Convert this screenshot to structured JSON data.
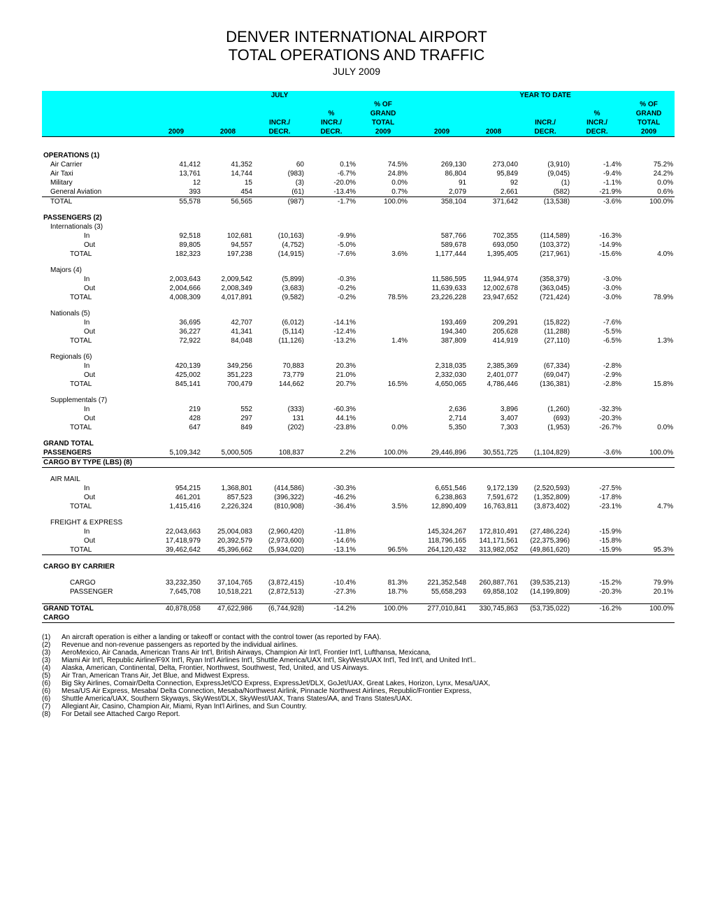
{
  "title": {
    "line1": "DENVER INTERNATIONAL AIRPORT",
    "line2": "TOTAL OPERATIONS AND TRAFFIC",
    "line3": "JULY 2009"
  },
  "headers": {
    "group_july": "JULY",
    "group_ytd": "YEAR TO DATE",
    "y2009": "2009",
    "y2008": "2008",
    "incr_decr": "INCR./",
    "decr": "DECR.",
    "pct": "%",
    "pct_incr": "INCR./",
    "pct_decr": "DECR.",
    "pct_of": "% OF",
    "grand": "GRAND",
    "total": "TOTAL",
    "y2009b": "2009"
  },
  "sections": {
    "operations": {
      "title": "OPERATIONS (1)",
      "rows": [
        {
          "label": "Air Carrier",
          "indent": 1,
          "j09": "41,412",
          "j08": "41,352",
          "jd": "60",
          "jp": "0.1%",
          "jg": "74.5%",
          "y09": "269,130",
          "y08": "273,040",
          "yd": "(3,910)",
          "yp": "-1.4%",
          "yg": "75.2%"
        },
        {
          "label": "Air Taxi",
          "indent": 1,
          "j09": "13,761",
          "j08": "14,744",
          "jd": "(983)",
          "jp": "-6.7%",
          "jg": "24.8%",
          "y09": "86,804",
          "y08": "95,849",
          "yd": "(9,045)",
          "yp": "-9.4%",
          "yg": "24.2%"
        },
        {
          "label": "Military",
          "indent": 1,
          "j09": "12",
          "j08": "15",
          "jd": "(3)",
          "jp": "-20.0%",
          "jg": "0.0%",
          "y09": "91",
          "y08": "92",
          "yd": "(1)",
          "yp": "-1.1%",
          "yg": "0.0%"
        },
        {
          "label": "General Aviation",
          "indent": 1,
          "j09": "393",
          "j08": "454",
          "jd": "(61)",
          "jp": "-13.4%",
          "jg": "0.7%",
          "y09": "2,079",
          "y08": "2,661",
          "yd": "(582)",
          "yp": "-21.9%",
          "yg": "0.6%"
        },
        {
          "label": "TOTAL",
          "indent": 1,
          "j09": "55,578",
          "j08": "56,565",
          "jd": "(987)",
          "jp": "-1.7%",
          "jg": "100.0%",
          "y09": "358,104",
          "y08": "371,642",
          "yd": "(13,538)",
          "yp": "-3.6%",
          "yg": "100.0%",
          "borderTop": true
        }
      ]
    },
    "passengers": {
      "title": "PASSENGERS (2)",
      "groups": [
        {
          "title": "Internationals (3)",
          "rows": [
            {
              "label": "In",
              "indent": 3,
              "j09": "92,518",
              "j08": "102,681",
              "jd": "(10,163)",
              "jp": "-9.9%",
              "jg": "",
              "y09": "587,766",
              "y08": "702,355",
              "yd": "(114,589)",
              "yp": "-16.3%",
              "yg": ""
            },
            {
              "label": "Out",
              "indent": 3,
              "j09": "89,805",
              "j08": "94,557",
              "jd": "(4,752)",
              "jp": "-5.0%",
              "jg": "",
              "y09": "589,678",
              "y08": "693,050",
              "yd": "(103,372)",
              "yp": "-14.9%",
              "yg": ""
            },
            {
              "label": "TOTAL",
              "indent": 2,
              "j09": "182,323",
              "j08": "197,238",
              "jd": "(14,915)",
              "jp": "-7.6%",
              "jg": "3.6%",
              "y09": "1,177,444",
              "y08": "1,395,405",
              "yd": "(217,961)",
              "yp": "-15.6%",
              "yg": "4.0%"
            }
          ]
        },
        {
          "title": "Majors (4)",
          "rows": [
            {
              "label": "In",
              "indent": 3,
              "j09": "2,003,643",
              "j08": "2,009,542",
              "jd": "(5,899)",
              "jp": "-0.3%",
              "jg": "",
              "y09": "11,586,595",
              "y08": "11,944,974",
              "yd": "(358,379)",
              "yp": "-3.0%",
              "yg": ""
            },
            {
              "label": "Out",
              "indent": 3,
              "j09": "2,004,666",
              "j08": "2,008,349",
              "jd": "(3,683)",
              "jp": "-0.2%",
              "jg": "",
              "y09": "11,639,633",
              "y08": "12,002,678",
              "yd": "(363,045)",
              "yp": "-3.0%",
              "yg": ""
            },
            {
              "label": "TOTAL",
              "indent": 2,
              "j09": "4,008,309",
              "j08": "4,017,891",
              "jd": "(9,582)",
              "jp": "-0.2%",
              "jg": "78.5%",
              "y09": "23,226,228",
              "y08": "23,947,652",
              "yd": "(721,424)",
              "yp": "-3.0%",
              "yg": "78.9%"
            }
          ]
        },
        {
          "title": "Nationals (5)",
          "rows": [
            {
              "label": "In",
              "indent": 3,
              "j09": "36,695",
              "j08": "42,707",
              "jd": "(6,012)",
              "jp": "-14.1%",
              "jg": "",
              "y09": "193,469",
              "y08": "209,291",
              "yd": "(15,822)",
              "yp": "-7.6%",
              "yg": ""
            },
            {
              "label": "Out",
              "indent": 3,
              "j09": "36,227",
              "j08": "41,341",
              "jd": "(5,114)",
              "jp": "-12.4%",
              "jg": "",
              "y09": "194,340",
              "y08": "205,628",
              "yd": "(11,288)",
              "yp": "-5.5%",
              "yg": ""
            },
            {
              "label": "TOTAL",
              "indent": 2,
              "j09": "72,922",
              "j08": "84,048",
              "jd": "(11,126)",
              "jp": "-13.2%",
              "jg": "1.4%",
              "y09": "387,809",
              "y08": "414,919",
              "yd": "(27,110)",
              "yp": "-6.5%",
              "yg": "1.3%"
            }
          ]
        },
        {
          "title": "Regionals (6)",
          "rows": [
            {
              "label": "In",
              "indent": 3,
              "j09": "420,139",
              "j08": "349,256",
              "jd": "70,883",
              "jp": "20.3%",
              "jg": "",
              "y09": "2,318,035",
              "y08": "2,385,369",
              "yd": "(67,334)",
              "yp": "-2.8%",
              "yg": ""
            },
            {
              "label": "Out",
              "indent": 3,
              "j09": "425,002",
              "j08": "351,223",
              "jd": "73,779",
              "jp": "21.0%",
              "jg": "",
              "y09": "2,332,030",
              "y08": "2,401,077",
              "yd": "(69,047)",
              "yp": "-2.9%",
              "yg": ""
            },
            {
              "label": "TOTAL",
              "indent": 2,
              "j09": "845,141",
              "j08": "700,479",
              "jd": "144,662",
              "jp": "20.7%",
              "jg": "16.5%",
              "y09": "4,650,065",
              "y08": "4,786,446",
              "yd": "(136,381)",
              "yp": "-2.8%",
              "yg": "15.8%"
            }
          ]
        },
        {
          "title": "Supplementals (7)",
          "rows": [
            {
              "label": "In",
              "indent": 3,
              "j09": "219",
              "j08": "552",
              "jd": "(333)",
              "jp": "-60.3%",
              "jg": "",
              "y09": "2,636",
              "y08": "3,896",
              "yd": "(1,260)",
              "yp": "-32.3%",
              "yg": ""
            },
            {
              "label": "Out",
              "indent": 3,
              "j09": "428",
              "j08": "297",
              "jd": "131",
              "jp": "44.1%",
              "jg": "",
              "y09": "2,714",
              "y08": "3,407",
              "yd": "(693)",
              "yp": "-20.3%",
              "yg": ""
            },
            {
              "label": "TOTAL",
              "indent": 2,
              "j09": "647",
              "j08": "849",
              "jd": "(202)",
              "jp": "-23.8%",
              "jg": "0.0%",
              "y09": "5,350",
              "y08": "7,303",
              "yd": "(1,953)",
              "yp": "-26.7%",
              "yg": "0.0%"
            }
          ]
        }
      ],
      "grand_title1": "GRAND TOTAL",
      "grand_title2": "PASSENGERS",
      "grand": {
        "j09": "5,109,342",
        "j08": "5,000,505",
        "jd": "108,837",
        "jp": "2.2%",
        "jg": "100.0%",
        "y09": "29,446,896",
        "y08": "30,551,725",
        "yd": "(1,104,829)",
        "yp": "-3.6%",
        "yg": "100.0%"
      }
    },
    "cargo_type": {
      "title": "CARGO BY TYPE (LBS) (8)",
      "groups": [
        {
          "title": "AIR MAIL",
          "rows": [
            {
              "label": "In",
              "indent": 3,
              "j09": "954,215",
              "j08": "1,368,801",
              "jd": "(414,586)",
              "jp": "-30.3%",
              "jg": "",
              "y09": "6,651,546",
              "y08": "9,172,139",
              "yd": "(2,520,593)",
              "yp": "-27.5%",
              "yg": ""
            },
            {
              "label": "Out",
              "indent": 3,
              "j09": "461,201",
              "j08": "857,523",
              "jd": "(396,322)",
              "jp": "-46.2%",
              "jg": "",
              "y09": "6,238,863",
              "y08": "7,591,672",
              "yd": "(1,352,809)",
              "yp": "-17.8%",
              "yg": ""
            },
            {
              "label": "TOTAL",
              "indent": 2,
              "j09": "1,415,416",
              "j08": "2,226,324",
              "jd": "(810,908)",
              "jp": "-36.4%",
              "jg": "3.5%",
              "y09": "12,890,409",
              "y08": "16,763,811",
              "yd": "(3,873,402)",
              "yp": "-23.1%",
              "yg": "4.7%"
            }
          ]
        },
        {
          "title": "FREIGHT & EXPRESS",
          "rows": [
            {
              "label": "In",
              "indent": 3,
              "j09": "22,043,663",
              "j08": "25,004,083",
              "jd": "(2,960,420)",
              "jp": "-11.8%",
              "jg": "",
              "y09": "145,324,267",
              "y08": "172,810,491",
              "yd": "(27,486,224)",
              "yp": "-15.9%",
              "yg": ""
            },
            {
              "label": "Out",
              "indent": 3,
              "j09": "17,418,979",
              "j08": "20,392,579",
              "jd": "(2,973,600)",
              "jp": "-14.6%",
              "jg": "",
              "y09": "118,796,165",
              "y08": "141,171,561",
              "yd": "(22,375,396)",
              "yp": "-15.8%",
              "yg": ""
            },
            {
              "label": "TOTAL",
              "indent": 2,
              "j09": "39,462,642",
              "j08": "45,396,662",
              "jd": "(5,934,020)",
              "jp": "-13.1%",
              "jg": "96.5%",
              "y09": "264,120,432",
              "y08": "313,982,052",
              "yd": "(49,861,620)",
              "yp": "-15.9%",
              "yg": "95.3%",
              "borderBottom": true
            }
          ]
        }
      ]
    },
    "cargo_carrier": {
      "title": "CARGO BY CARRIER",
      "rows": [
        {
          "label": "CARGO",
          "indent": 2,
          "j09": "33,232,350",
          "j08": "37,104,765",
          "jd": "(3,872,415)",
          "jp": "-10.4%",
          "jg": "81.3%",
          "y09": "221,352,548",
          "y08": "260,887,761",
          "yd": "(39,535,213)",
          "yp": "-15.2%",
          "yg": "79.9%"
        },
        {
          "label": "PASSENGER",
          "indent": 2,
          "j09": "7,645,708",
          "j08": "10,518,221",
          "jd": "(2,872,513)",
          "jp": "-27.3%",
          "jg": "18.7%",
          "y09": "55,658,293",
          "y08": "69,858,102",
          "yd": "(14,199,809)",
          "yp": "-20.3%",
          "yg": "20.1%"
        }
      ],
      "grand_title1": "GRAND TOTAL",
      "grand_title2": "CARGO",
      "grand": {
        "j09": "40,878,058",
        "j08": "47,622,986",
        "jd": "(6,744,928)",
        "jp": "-14.2%",
        "jg": "100.0%",
        "y09": "277,010,841",
        "y08": "330,745,863",
        "yd": "(53,735,022)",
        "yp": "-16.2%",
        "yg": "100.0%"
      }
    }
  },
  "footnotes": [
    {
      "n": "(1)",
      "t": "An aircraft operation is either a landing or takeoff or contact with the control tower (as reported by FAA)."
    },
    {
      "n": "(2)",
      "t": "Revenue and non-revenue passengers as reported by the individual airlines."
    },
    {
      "n": "(3)",
      "t": "AeroMexico, Air Canada, American Trans Air Int'l, British Airways, Champion Air Int'l, Frontier Int'l, Lufthansa, Mexicana,"
    },
    {
      "n": "(3)",
      "t": "Miami Air Int'l, Republic Airline/F9X Int'l, Ryan Int'l Airlines Int'l, Shuttle America/UAX Int'l, SkyWest/UAX Int'l, Ted Int'l, and United Int'l.."
    },
    {
      "n": "(4)",
      "t": "Alaska, American, Continental, Delta, Frontier, Northwest, Southwest, Ted, United, and US Airways."
    },
    {
      "n": "(5)",
      "t": "Air Tran, American Trans Air, Jet Blue, and Midwest Express."
    },
    {
      "n": "(6)",
      "t": "Big Sky Airlines, Comair/Delta Connection, ExpressJet/CO Express, ExpressJet/DLX, GoJet/UAX, Great Lakes, Horizon, Lynx, Mesa/UAX,"
    },
    {
      "n": "(6)",
      "t": "Mesa/US Air Express,  Mesaba/ Delta Connection, Mesaba/Northwest Airlink, Pinnacle Northwest Airlines, Republic/Frontier Express,"
    },
    {
      "n": "(6)",
      "t": "Shuttle America/UAX, Southern Skyways, SkyWest/DLX, SkyWest/UAX, Trans States/AA, and Trans States/UAX."
    },
    {
      "n": "(7)",
      "t": "Allegiant Air, Casino, Champion Air, Miami, Ryan Int'l Airlines, and Sun Country."
    },
    {
      "n": "(8)",
      "t": "For Detail see Attached Cargo Report."
    }
  ],
  "colors": {
    "header_bg": "#00ffff"
  }
}
